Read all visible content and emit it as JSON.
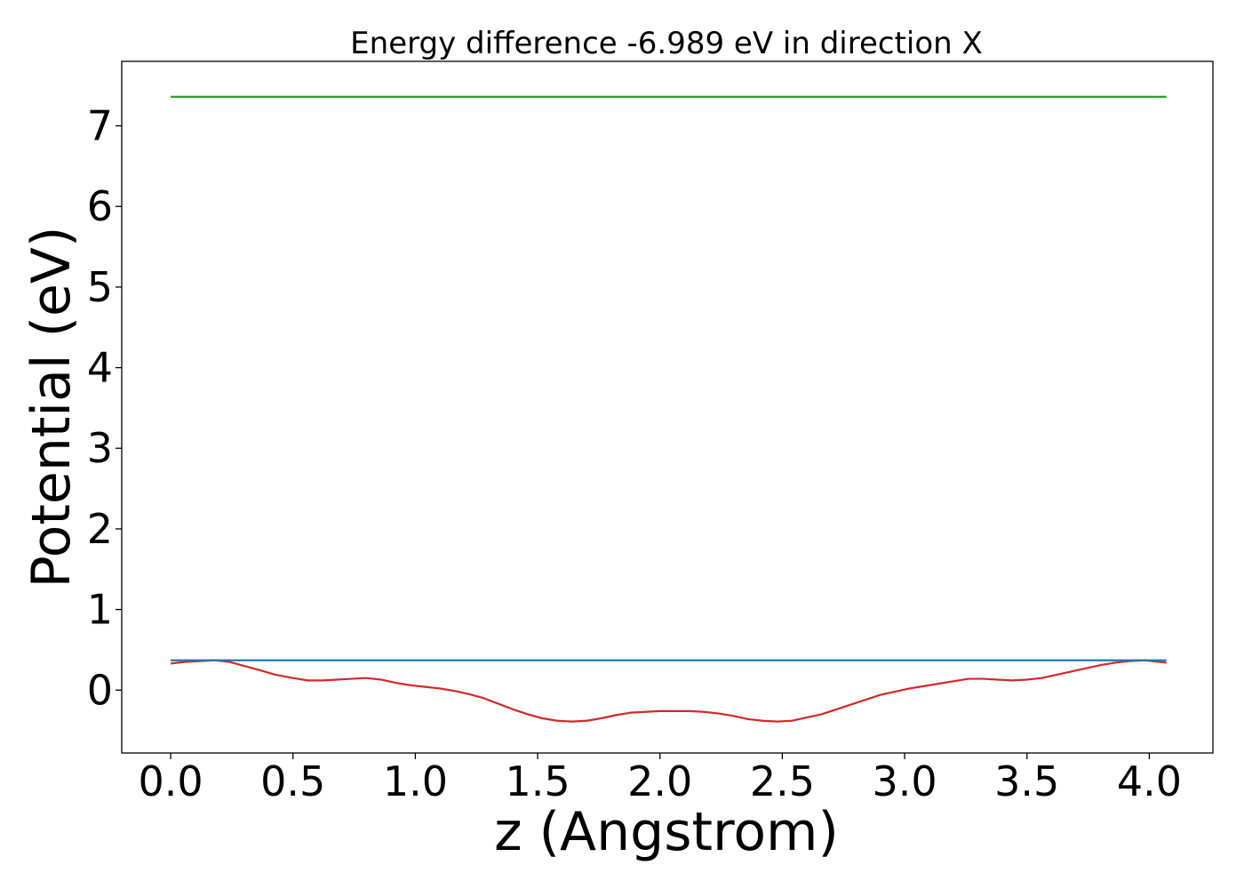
{
  "chart_data": {
    "type": "line",
    "title": "Energy difference -6.989 eV in direction X",
    "xlabel": "z (Angstrom)",
    "ylabel": "Potential (eV)",
    "xlim": [
      -0.2,
      4.26
    ],
    "ylim": [
      -0.78,
      7.8
    ],
    "xticks": [
      0.0,
      0.5,
      1.0,
      1.5,
      2.0,
      2.5,
      3.0,
      3.5,
      4.0
    ],
    "xtick_labels": [
      "0.0",
      "0.5",
      "1.0",
      "1.5",
      "2.0",
      "2.5",
      "3.0",
      "3.5",
      "4.0"
    ],
    "yticks": [
      0,
      1,
      2,
      3,
      4,
      5,
      6,
      7
    ],
    "ytick_labels": [
      "0",
      "1",
      "2",
      "3",
      "4",
      "5",
      "6",
      "7"
    ],
    "grid": false,
    "legend": "none",
    "series": [
      {
        "color": "#d62728",
        "x": [
          0.0,
          0.06,
          0.12,
          0.18,
          0.24,
          0.3,
          0.36,
          0.43,
          0.5,
          0.56,
          0.62,
          0.68,
          0.74,
          0.8,
          0.86,
          0.92,
          0.98,
          1.04,
          1.1,
          1.16,
          1.22,
          1.28,
          1.34,
          1.4,
          1.46,
          1.52,
          1.58,
          1.64,
          1.7,
          1.76,
          1.82,
          1.88,
          1.94,
          2.0,
          2.06,
          2.12,
          2.18,
          2.24,
          2.3,
          2.36,
          2.42,
          2.48,
          2.54,
          2.6,
          2.66,
          2.72,
          2.78,
          2.84,
          2.9,
          2.96,
          3.02,
          3.08,
          3.14,
          3.2,
          3.26,
          3.32,
          3.38,
          3.44,
          3.5,
          3.56,
          3.62,
          3.68,
          3.74,
          3.8,
          3.86,
          3.92,
          3.98,
          4.04,
          4.07
        ],
        "y": [
          0.33,
          0.35,
          0.36,
          0.37,
          0.35,
          0.3,
          0.25,
          0.19,
          0.15,
          0.12,
          0.12,
          0.13,
          0.14,
          0.15,
          0.13,
          0.09,
          0.06,
          0.04,
          0.02,
          -0.01,
          -0.05,
          -0.1,
          -0.17,
          -0.24,
          -0.3,
          -0.35,
          -0.38,
          -0.39,
          -0.38,
          -0.35,
          -0.31,
          -0.28,
          -0.27,
          -0.26,
          -0.26,
          -0.26,
          -0.27,
          -0.29,
          -0.32,
          -0.36,
          -0.38,
          -0.39,
          -0.38,
          -0.34,
          -0.3,
          -0.24,
          -0.18,
          -0.12,
          -0.06,
          -0.02,
          0.02,
          0.05,
          0.08,
          0.11,
          0.14,
          0.14,
          0.13,
          0.12,
          0.13,
          0.15,
          0.19,
          0.23,
          0.27,
          0.31,
          0.34,
          0.36,
          0.37,
          0.35,
          0.34
        ]
      },
      {
        "color": "#1f77b4",
        "x": [
          0.0,
          4.07
        ],
        "y": [
          0.37,
          0.37
        ]
      },
      {
        "color": "#2ca02c",
        "x": [
          0.0,
          4.07
        ],
        "y": [
          7.36,
          7.36
        ]
      }
    ]
  }
}
